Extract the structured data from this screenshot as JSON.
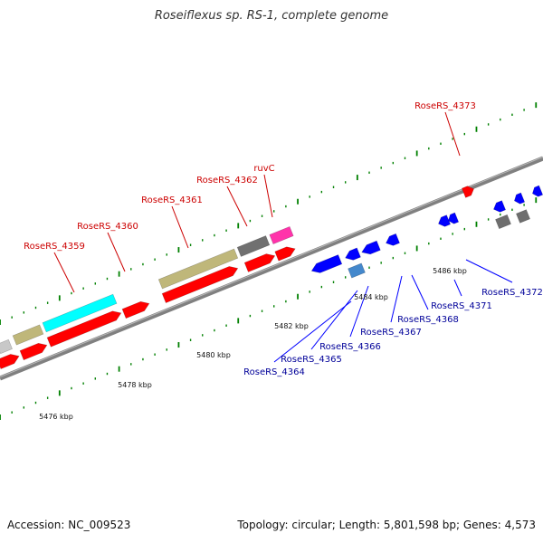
{
  "title": "Roseiflexus sp. RS-1, complete genome",
  "footer": {
    "accession": "Accession: NC_009523",
    "summary": "Topology: circular; Length: 5,801,598 bp; Genes: 4,573"
  },
  "colors": {
    "forward_gene": "#ff0000",
    "reverse_gene": "#0000ff",
    "label_forward": "#cc0000",
    "label_reverse": "#000099",
    "tick": "#008000",
    "backbone": "#808080"
  },
  "scale_labels": [
    "5476 kbp",
    "5478 kbp",
    "5480 kbp",
    "5482 kbp",
    "5484 kbp",
    "5486 kbp"
  ],
  "forward_genes": [
    "RoseRS_4359",
    "RoseRS_4360",
    "RoseRS_4361",
    "RoseRS_4362",
    "ruvC",
    "RoseRS_4373"
  ],
  "reverse_genes": [
    "RoseRS_4364",
    "RoseRS_4365",
    "RoseRS_4366",
    "RoseRS_4367",
    "RoseRS_4368",
    "RoseRS_4371",
    "RoseRS_4372"
  ]
}
